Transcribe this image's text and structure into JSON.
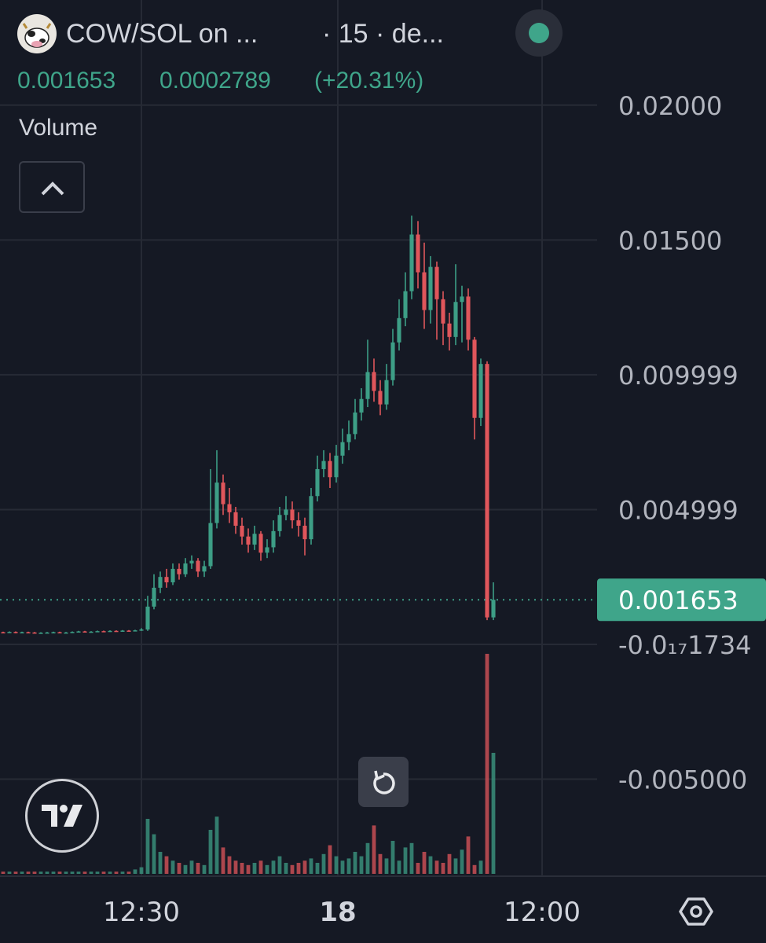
{
  "chart_data": {
    "type": "candlestick",
    "title": "COW/SOL on ...",
    "subtitle": "· 15 · de...",
    "legend_values": [
      "0.001653",
      "0.0002789",
      "(+20.31%)"
    ],
    "volume_label": "Volume",
    "up_color": "#3d9e86",
    "down_color": "#e0565b",
    "last_price": 0.001653,
    "xlim": [
      -0.5,
      94.5
    ],
    "xticks": [
      {
        "value": 22,
        "label": "12:30"
      },
      {
        "value": 53.25,
        "label": "18"
      },
      {
        "value": 85.75,
        "label": "12:00"
      }
    ],
    "ylim": [
      -0.0086,
      0.0239
    ],
    "yticks": [
      {
        "value": 0.02,
        "label": "0.02000"
      },
      {
        "value": 0.015,
        "label": "0.01500"
      },
      0.009999,
      0.004999,
      {
        "value": -1.734e-21,
        "label": "-0.0₁₇1734"
      },
      {
        "value": -0.005,
        "label": "-0.005000"
      }
    ],
    "grid": true,
    "open": [
      0.00045,
      0.00044,
      0.00046,
      0.00043,
      0.00045,
      0.00044,
      0.00042,
      0.00043,
      0.00044,
      0.00045,
      0.00043,
      0.00044,
      0.00046,
      0.00048,
      0.00046,
      0.00047,
      0.00049,
      0.00048,
      0.0005,
      0.00049,
      0.00051,
      0.0005,
      0.00052,
      0.00055,
      0.0014,
      0.0021,
      0.0025,
      0.0023,
      0.0028,
      0.0026,
      0.003,
      0.0031,
      0.0027,
      0.0029,
      0.0045,
      0.006,
      0.0052,
      0.0049,
      0.0044,
      0.004,
      0.0037,
      0.0041,
      0.0034,
      0.0036,
      0.0042,
      0.0048,
      0.005,
      0.0046,
      0.0044,
      0.0039,
      0.0055,
      0.0065,
      0.0068,
      0.0062,
      0.007,
      0.0075,
      0.0078,
      0.0086,
      0.0091,
      0.0101,
      0.0094,
      0.0089,
      0.0098,
      0.0112,
      0.0121,
      0.0131,
      0.0152,
      0.0138,
      0.0124,
      0.014,
      0.0128,
      0.0119,
      0.0114,
      0.0127,
      0.0129,
      0.0113,
      0.0084,
      0.0104,
      0.001
    ],
    "high": [
      0.00047,
      0.00048,
      0.00048,
      0.00047,
      0.00047,
      0.00046,
      0.00045,
      0.00046,
      0.00047,
      0.00047,
      0.00046,
      0.00048,
      0.0005,
      0.0005,
      0.00049,
      0.00051,
      0.00051,
      0.00052,
      0.00052,
      0.00053,
      0.00053,
      0.00054,
      0.0006,
      0.0018,
      0.0026,
      0.0027,
      0.0028,
      0.003,
      0.003,
      0.0032,
      0.0033,
      0.0032,
      0.0031,
      0.0065,
      0.0072,
      0.0063,
      0.0058,
      0.0051,
      0.0047,
      0.0043,
      0.0044,
      0.0042,
      0.0039,
      0.0046,
      0.0051,
      0.0055,
      0.0053,
      0.0049,
      0.0047,
      0.0058,
      0.007,
      0.0072,
      0.0071,
      0.0074,
      0.008,
      0.0083,
      0.0091,
      0.0095,
      0.0113,
      0.0106,
      0.0098,
      0.0104,
      0.0117,
      0.0128,
      0.0138,
      0.0159,
      0.0157,
      0.0149,
      0.0144,
      0.0142,
      0.0131,
      0.0123,
      0.0141,
      0.0133,
      0.0132,
      0.0114,
      0.0106,
      0.0105,
      0.0023
    ],
    "low": [
      0.00042,
      0.00042,
      0.00041,
      0.00041,
      0.00042,
      0.0004,
      0.0004,
      0.00041,
      0.00042,
      0.00041,
      0.00041,
      0.00042,
      0.00044,
      0.00044,
      0.00044,
      0.00045,
      0.00046,
      0.00046,
      0.00047,
      0.00047,
      0.00048,
      0.00048,
      0.0005,
      0.0005,
      0.0013,
      0.0019,
      0.0021,
      0.0022,
      0.0024,
      0.0025,
      0.0028,
      0.0025,
      0.0025,
      0.0028,
      0.0043,
      0.0048,
      0.0045,
      0.0041,
      0.0037,
      0.0034,
      0.0035,
      0.0031,
      0.0032,
      0.0034,
      0.004,
      0.0046,
      0.0043,
      0.004,
      0.0033,
      0.0037,
      0.0053,
      0.0062,
      0.0058,
      0.006,
      0.0067,
      0.0072,
      0.0076,
      0.0083,
      0.0088,
      0.009,
      0.0085,
      0.0087,
      0.0096,
      0.0109,
      0.0118,
      0.0128,
      0.0132,
      0.0117,
      0.0119,
      0.0113,
      0.0111,
      0.0109,
      0.0111,
      0.0112,
      0.0109,
      0.0076,
      0.0081,
      0.0009,
      0.0009
    ],
    "close": [
      0.00044,
      0.00046,
      0.00043,
      0.00045,
      0.00044,
      0.00042,
      0.00043,
      0.00044,
      0.00045,
      0.00043,
      0.00044,
      0.00046,
      0.00048,
      0.00046,
      0.00047,
      0.00049,
      0.00048,
      0.0005,
      0.00049,
      0.00051,
      0.0005,
      0.00052,
      0.00055,
      0.0014,
      0.0021,
      0.0025,
      0.0023,
      0.0028,
      0.0026,
      0.003,
      0.0031,
      0.0027,
      0.0029,
      0.0045,
      0.006,
      0.0052,
      0.0049,
      0.0044,
      0.004,
      0.0037,
      0.0041,
      0.0034,
      0.0036,
      0.0042,
      0.0048,
      0.005,
      0.0046,
      0.0044,
      0.0039,
      0.0055,
      0.0065,
      0.0068,
      0.0062,
      0.007,
      0.0075,
      0.0078,
      0.0086,
      0.0091,
      0.0101,
      0.0094,
      0.0089,
      0.0098,
      0.0112,
      0.0121,
      0.0131,
      0.0152,
      0.0138,
      0.0124,
      0.014,
      0.0128,
      0.0119,
      0.0114,
      0.0127,
      0.0129,
      0.0113,
      0.0084,
      0.0104,
      0.001,
      0.001653
    ],
    "volume": [
      1,
      1,
      1,
      1,
      1,
      1,
      1,
      1,
      1,
      1,
      1,
      1,
      1,
      1,
      1,
      1,
      1,
      1,
      1,
      1,
      1,
      2,
      3,
      25,
      18,
      10,
      8,
      6,
      5,
      4,
      6,
      5,
      4,
      20,
      26,
      12,
      8,
      6,
      5,
      4,
      5,
      6,
      4,
      6,
      8,
      5,
      4,
      5,
      6,
      7,
      5,
      9,
      13,
      8,
      6,
      7,
      10,
      8,
      14,
      22,
      9,
      7,
      15,
      6,
      12,
      14,
      5,
      10,
      8,
      6,
      5,
      9,
      7,
      11,
      17,
      4,
      6,
      100,
      55
    ]
  }
}
